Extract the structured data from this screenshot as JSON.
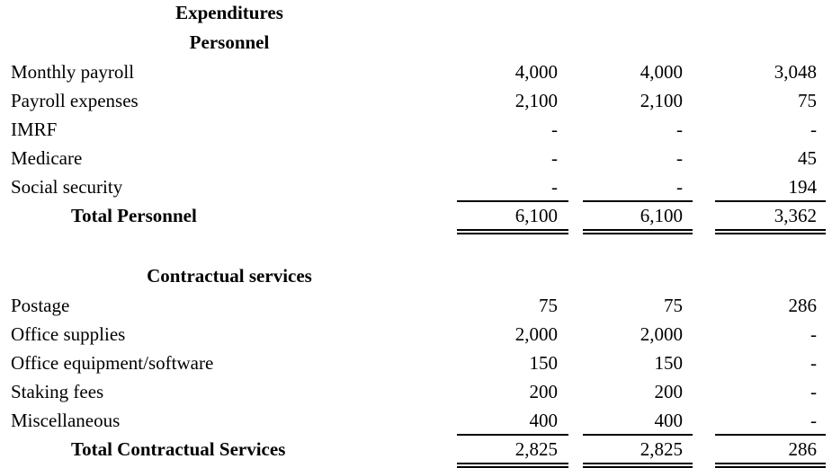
{
  "header": {
    "title": "Expenditures"
  },
  "sections": [
    {
      "title": "Personnel",
      "rows": [
        {
          "label": "Monthly payroll",
          "values": [
            "4,000",
            "4,000",
            "3,048"
          ]
        },
        {
          "label": "Payroll expenses",
          "values": [
            "2,100",
            "2,100",
            "75"
          ]
        },
        {
          "label": "IMRF",
          "values": [
            "-",
            "-",
            "-"
          ]
        },
        {
          "label": "Medicare",
          "values": [
            "-",
            "-",
            "45"
          ]
        },
        {
          "label": "Social security",
          "values": [
            "-",
            "-",
            "194"
          ]
        }
      ],
      "total": {
        "label": "Total Personnel",
        "values": [
          "6,100",
          "6,100",
          "3,362"
        ]
      }
    },
    {
      "title": "Contractual services",
      "rows": [
        {
          "label": "Postage",
          "values": [
            "75",
            "75",
            "286"
          ]
        },
        {
          "label": "Office supplies",
          "values": [
            "2,000",
            "2,000",
            "-"
          ]
        },
        {
          "label": "Office equipment/software",
          "values": [
            "150",
            "150",
            "-"
          ]
        },
        {
          "label": "Staking fees",
          "values": [
            "200",
            "200",
            "-"
          ]
        },
        {
          "label": "Miscellaneous",
          "values": [
            "400",
            "400",
            "-"
          ]
        }
      ],
      "total": {
        "label": "Total Contractual Services",
        "values": [
          "2,825",
          "2,825",
          "286"
        ]
      }
    }
  ]
}
